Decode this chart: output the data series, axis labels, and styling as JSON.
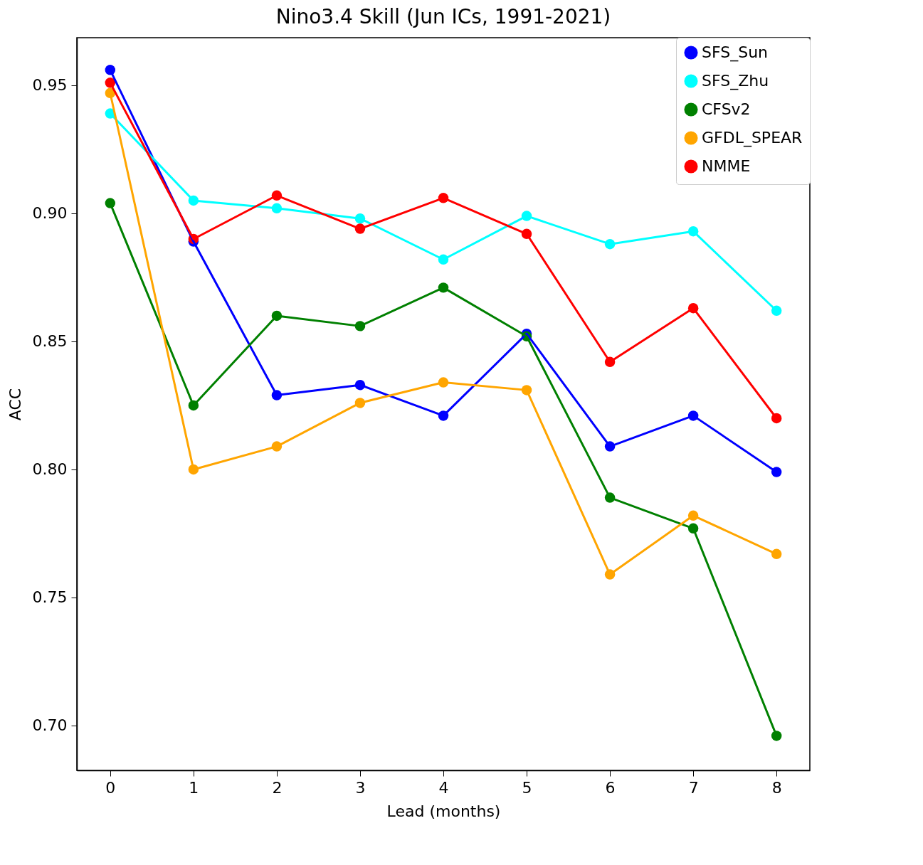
{
  "chart_data": {
    "type": "line",
    "title": "Nino3.4 Skill (Jun ICs, 1991-2021)",
    "xlabel": "Lead (months)",
    "ylabel": "ACC",
    "x": [
      0,
      1,
      2,
      3,
      4,
      5,
      6,
      7,
      8
    ],
    "series": [
      {
        "name": "SFS_Sun",
        "color": "#0000ff",
        "values": [
          0.956,
          0.889,
          0.829,
          0.833,
          0.821,
          0.853,
          0.809,
          0.821,
          0.799
        ]
      },
      {
        "name": "SFS_Zhu",
        "color": "#00ffff",
        "values": [
          0.939,
          0.905,
          0.902,
          0.898,
          0.882,
          0.899,
          0.888,
          0.893,
          0.862
        ]
      },
      {
        "name": "CFSv2",
        "color": "#008000",
        "values": [
          0.904,
          0.825,
          0.86,
          0.856,
          0.871,
          0.852,
          0.789,
          0.777,
          0.696
        ]
      },
      {
        "name": "GFDL_SPEAR",
        "color": "#ffa500",
        "values": [
          0.947,
          0.8,
          0.809,
          0.826,
          0.834,
          0.831,
          0.759,
          0.782,
          0.767
        ]
      },
      {
        "name": "NMME",
        "color": "#ff0000",
        "values": [
          0.951,
          0.89,
          0.907,
          0.894,
          0.906,
          0.892,
          0.842,
          0.863,
          0.82
        ]
      }
    ],
    "xlim": [
      -0.4,
      8.4
    ],
    "xticks": [
      0,
      1,
      2,
      3,
      4,
      5,
      6,
      7,
      8
    ],
    "ylim": [
      0.6825,
      0.9686
    ],
    "yticks": [
      {
        "value": 0.7,
        "label": "0.70"
      },
      {
        "value": 0.75,
        "label": "0.75"
      },
      {
        "value": 0.8,
        "label": "0.80"
      },
      {
        "value": 0.85,
        "label": "0.85"
      },
      {
        "value": 0.9,
        "label": "0.90"
      },
      {
        "value": 0.95,
        "label": "0.95"
      }
    ],
    "grid": false,
    "legend": "top right",
    "marker": "circle",
    "line_style": "solid"
  }
}
